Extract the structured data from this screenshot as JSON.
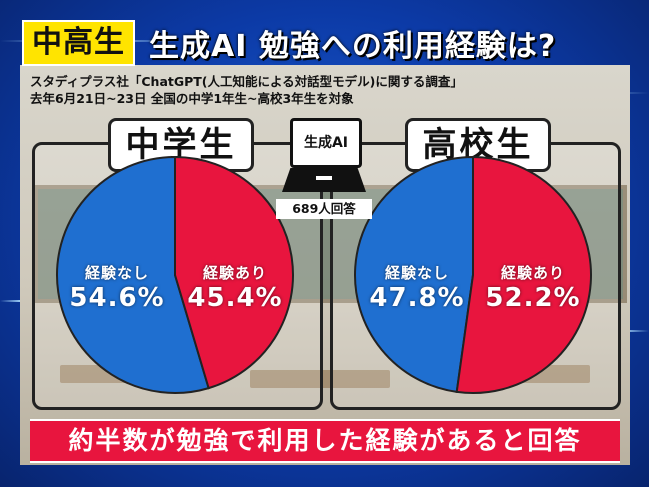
{
  "header": {
    "tag": "中高生",
    "title": "生成AI 勉強への利用経験は?"
  },
  "source": {
    "line1": "スタディプラス社「ChatGPT(人工知能による対話型モデル)に関する調査」",
    "line2": "去年6月21日~23日 全国の中学1年生~高校3年生を対象"
  },
  "center": {
    "icon_label": "生成AI",
    "sample_size": "689人回答"
  },
  "footer": {
    "banner": "約半数が勉強で利用した経験があると回答"
  },
  "colors": {
    "no_experience": "#1f6fd0",
    "experience": "#e8153e",
    "tag_bg": "#ffe400",
    "banner_bg": "#e8153e"
  },
  "chart_data": [
    {
      "type": "pie",
      "title": "中学生",
      "categories": [
        "経験なし",
        "経験あり"
      ],
      "values": [
        54.6,
        45.4
      ],
      "value_labels": [
        "54.6%",
        "45.4%"
      ]
    },
    {
      "type": "pie",
      "title": "高校生",
      "categories": [
        "経験なし",
        "経験あり"
      ],
      "values": [
        47.8,
        52.2
      ],
      "value_labels": [
        "47.8%",
        "52.2%"
      ]
    }
  ]
}
